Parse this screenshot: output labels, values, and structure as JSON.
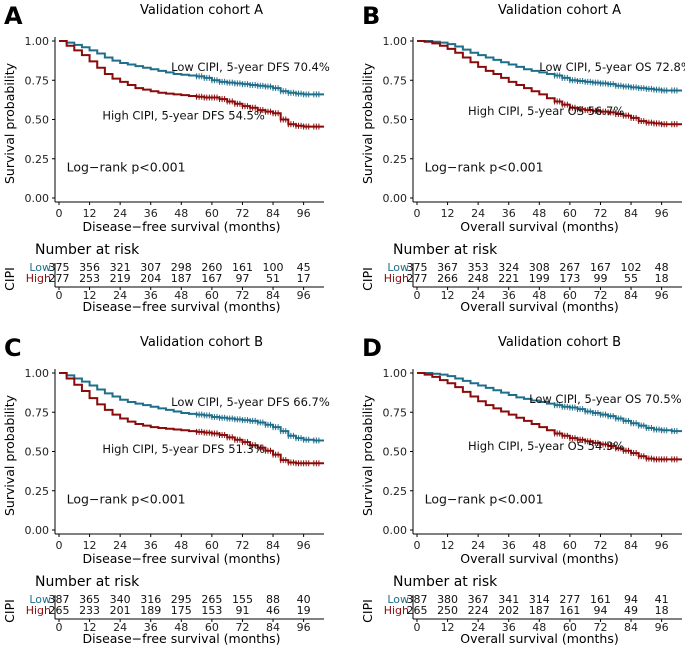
{
  "colors": {
    "low": "#1f6f8b",
    "high": "#8b0a0a",
    "axis": "#000000"
  },
  "chart_data": [
    {
      "type": "line",
      "panel_label": "A",
      "title": "Validation cohort A",
      "xlabel": "Disease−free survival (months)",
      "ylabel": "Survival probability",
      "xlim": [
        0,
        104
      ],
      "ylim": [
        0,
        1
      ],
      "xticks": [
        "0",
        "12",
        "24",
        "36",
        "48",
        "60",
        "72",
        "84",
        "96"
      ],
      "yticks": [
        "0.00",
        "0.25",
        "0.50",
        "0.75",
        "1.00"
      ],
      "series": [
        {
          "name": "Low",
          "label": "Low CIPI, 5-year DFS 70.4%",
          "x": [
            0,
            3,
            6,
            9,
            12,
            15,
            18,
            21,
            24,
            27,
            30,
            33,
            36,
            39,
            42,
            45,
            48,
            51,
            54,
            57,
            60,
            63,
            66,
            69,
            72,
            75,
            78,
            81,
            84,
            87,
            90,
            93,
            96,
            100,
            104
          ],
          "y": [
            1.0,
            0.99,
            0.975,
            0.96,
            0.94,
            0.92,
            0.895,
            0.875,
            0.86,
            0.85,
            0.84,
            0.83,
            0.82,
            0.81,
            0.8,
            0.79,
            0.785,
            0.78,
            0.775,
            0.765,
            0.75,
            0.74,
            0.735,
            0.73,
            0.725,
            0.72,
            0.715,
            0.71,
            0.7,
            0.68,
            0.67,
            0.665,
            0.66,
            0.66,
            0.66
          ]
        },
        {
          "name": "High",
          "label": "High CIPI, 5-year DFS 54.5%",
          "x": [
            0,
            3,
            6,
            9,
            12,
            15,
            18,
            21,
            24,
            27,
            30,
            33,
            36,
            39,
            42,
            45,
            48,
            51,
            54,
            57,
            60,
            63,
            66,
            69,
            72,
            75,
            78,
            81,
            84,
            87,
            90,
            93,
            96,
            100,
            104
          ],
          "y": [
            1.0,
            0.97,
            0.94,
            0.91,
            0.87,
            0.83,
            0.79,
            0.76,
            0.74,
            0.72,
            0.7,
            0.69,
            0.68,
            0.67,
            0.665,
            0.66,
            0.655,
            0.65,
            0.645,
            0.64,
            0.64,
            0.63,
            0.615,
            0.6,
            0.585,
            0.575,
            0.56,
            0.55,
            0.54,
            0.5,
            0.47,
            0.46,
            0.455,
            0.455,
            0.455
          ]
        }
      ],
      "logrank": "Log−rank p<0.001",
      "risk": {
        "title": "Number at risk",
        "axis_label": "CIPI",
        "rows": [
          {
            "name": "Low",
            "values": [
              "375",
              "356",
              "321",
              "307",
              "298",
              "260",
              "161",
              "100",
              "45"
            ]
          },
          {
            "name": "High",
            "values": [
              "277",
              "253",
              "219",
              "204",
              "187",
              "167",
              "97",
              "51",
              "17"
            ]
          }
        ]
      }
    },
    {
      "type": "line",
      "panel_label": "B",
      "title": "Validation cohort A",
      "xlabel": "Overall survival (months)",
      "ylabel": "Survival probability",
      "xlim": [
        0,
        104
      ],
      "ylim": [
        0,
        1
      ],
      "xticks": [
        "0",
        "12",
        "24",
        "36",
        "48",
        "60",
        "72",
        "84",
        "96"
      ],
      "yticks": [
        "0.00",
        "0.25",
        "0.50",
        "0.75",
        "1.00"
      ],
      "series": [
        {
          "name": "Low",
          "label": "Low CIPI, 5-year OS 72.8%",
          "x": [
            0,
            3,
            6,
            9,
            12,
            15,
            18,
            21,
            24,
            27,
            30,
            33,
            36,
            39,
            42,
            45,
            48,
            51,
            54,
            57,
            60,
            63,
            66,
            69,
            72,
            75,
            78,
            81,
            84,
            87,
            90,
            93,
            96,
            100,
            104
          ],
          "y": [
            1.0,
            1.0,
            0.995,
            0.99,
            0.98,
            0.965,
            0.945,
            0.925,
            0.91,
            0.895,
            0.88,
            0.865,
            0.85,
            0.835,
            0.82,
            0.81,
            0.8,
            0.79,
            0.78,
            0.765,
            0.75,
            0.745,
            0.74,
            0.735,
            0.73,
            0.725,
            0.715,
            0.71,
            0.705,
            0.7,
            0.695,
            0.69,
            0.685,
            0.685,
            0.685
          ]
        },
        {
          "name": "High",
          "label": "High CIPI, 5-year OS 56.7%",
          "x": [
            0,
            3,
            6,
            9,
            12,
            15,
            18,
            21,
            24,
            27,
            30,
            33,
            36,
            39,
            42,
            45,
            48,
            51,
            54,
            57,
            60,
            63,
            66,
            69,
            72,
            75,
            78,
            81,
            84,
            87,
            90,
            93,
            96,
            100,
            104
          ],
          "y": [
            1.0,
            0.995,
            0.985,
            0.97,
            0.95,
            0.925,
            0.895,
            0.865,
            0.835,
            0.81,
            0.79,
            0.765,
            0.74,
            0.72,
            0.7,
            0.68,
            0.66,
            0.635,
            0.615,
            0.595,
            0.575,
            0.565,
            0.56,
            0.555,
            0.55,
            0.545,
            0.535,
            0.525,
            0.51,
            0.49,
            0.48,
            0.475,
            0.47,
            0.47,
            0.47
          ]
        }
      ],
      "logrank": "Log−rank p<0.001",
      "risk": {
        "title": "Number at risk",
        "axis_label": "CIPI",
        "rows": [
          {
            "name": "Low",
            "values": [
              "375",
              "367",
              "353",
              "324",
              "308",
              "267",
              "167",
              "102",
              "48"
            ]
          },
          {
            "name": "High",
            "values": [
              "277",
              "266",
              "248",
              "221",
              "199",
              "173",
              "99",
              "55",
              "18"
            ]
          }
        ]
      }
    },
    {
      "type": "line",
      "panel_label": "C",
      "title": "Validation cohort B",
      "xlabel": "Disease−free survival (months)",
      "ylabel": "Survival probability",
      "xlim": [
        0,
        104
      ],
      "ylim": [
        0,
        1
      ],
      "xticks": [
        "0",
        "12",
        "24",
        "36",
        "48",
        "60",
        "72",
        "84",
        "96"
      ],
      "yticks": [
        "0.00",
        "0.25",
        "0.50",
        "0.75",
        "1.00"
      ],
      "series": [
        {
          "name": "Low",
          "label": "Low CIPI, 5-year DFS 66.7%",
          "x": [
            0,
            3,
            6,
            9,
            12,
            15,
            18,
            21,
            24,
            27,
            30,
            33,
            36,
            39,
            42,
            45,
            48,
            51,
            54,
            57,
            60,
            63,
            66,
            69,
            72,
            75,
            78,
            81,
            84,
            87,
            90,
            93,
            96,
            100,
            104
          ],
          "y": [
            1.0,
            0.985,
            0.965,
            0.945,
            0.92,
            0.895,
            0.87,
            0.85,
            0.83,
            0.815,
            0.805,
            0.795,
            0.785,
            0.775,
            0.765,
            0.755,
            0.745,
            0.74,
            0.735,
            0.73,
            0.72,
            0.715,
            0.71,
            0.705,
            0.7,
            0.695,
            0.685,
            0.67,
            0.655,
            0.63,
            0.6,
            0.585,
            0.575,
            0.57,
            0.57
          ]
        },
        {
          "name": "High",
          "label": "High CIPI, 5-year DFS 51.3%",
          "x": [
            0,
            3,
            6,
            9,
            12,
            15,
            18,
            21,
            24,
            27,
            30,
            33,
            36,
            39,
            42,
            45,
            48,
            51,
            54,
            57,
            60,
            63,
            66,
            69,
            72,
            75,
            78,
            81,
            84,
            87,
            90,
            93,
            96,
            100,
            104
          ],
          "y": [
            1.0,
            0.965,
            0.925,
            0.885,
            0.84,
            0.8,
            0.765,
            0.735,
            0.71,
            0.69,
            0.675,
            0.665,
            0.655,
            0.65,
            0.645,
            0.64,
            0.635,
            0.63,
            0.625,
            0.62,
            0.615,
            0.605,
            0.59,
            0.575,
            0.56,
            0.54,
            0.525,
            0.505,
            0.48,
            0.445,
            0.43,
            0.425,
            0.425,
            0.425,
            0.425
          ]
        }
      ],
      "logrank": "Log−rank p<0.001",
      "risk": {
        "title": "Number at risk",
        "axis_label": "CIPI",
        "rows": [
          {
            "name": "Low",
            "values": [
              "387",
              "365",
              "340",
              "316",
              "295",
              "265",
              "155",
              "88",
              "40"
            ]
          },
          {
            "name": "High",
            "values": [
              "265",
              "233",
              "201",
              "189",
              "175",
              "153",
              "91",
              "46",
              "19"
            ]
          }
        ]
      }
    },
    {
      "type": "line",
      "panel_label": "D",
      "title": "Validation cohort B",
      "xlabel": "Overall survival (months)",
      "ylabel": "Survival probability",
      "xlim": [
        0,
        104
      ],
      "ylim": [
        0,
        1
      ],
      "xticks": [
        "0",
        "12",
        "24",
        "36",
        "48",
        "60",
        "72",
        "84",
        "96"
      ],
      "yticks": [
        "0.00",
        "0.25",
        "0.50",
        "0.75",
        "1.00"
      ],
      "series": [
        {
          "name": "Low",
          "label": "Low CIPI, 5-year OS 70.5%",
          "x": [
            0,
            3,
            6,
            9,
            12,
            15,
            18,
            21,
            24,
            27,
            30,
            33,
            36,
            39,
            42,
            45,
            48,
            51,
            54,
            57,
            60,
            63,
            66,
            69,
            72,
            75,
            78,
            81,
            84,
            87,
            90,
            93,
            96,
            100,
            104
          ],
          "y": [
            1.0,
            1.0,
            0.995,
            0.99,
            0.98,
            0.965,
            0.95,
            0.935,
            0.92,
            0.905,
            0.89,
            0.875,
            0.86,
            0.845,
            0.835,
            0.825,
            0.815,
            0.805,
            0.795,
            0.785,
            0.78,
            0.77,
            0.755,
            0.745,
            0.735,
            0.725,
            0.71,
            0.695,
            0.68,
            0.665,
            0.65,
            0.64,
            0.635,
            0.63,
            0.63
          ]
        },
        {
          "name": "High",
          "label": "High CIPI, 5-year OS 54.3%",
          "x": [
            0,
            3,
            6,
            9,
            12,
            15,
            18,
            21,
            24,
            27,
            30,
            33,
            36,
            39,
            42,
            45,
            48,
            51,
            54,
            57,
            60,
            63,
            66,
            69,
            72,
            75,
            78,
            81,
            84,
            87,
            90,
            93,
            96,
            100,
            104
          ],
          "y": [
            1.0,
            0.99,
            0.975,
            0.955,
            0.935,
            0.91,
            0.88,
            0.85,
            0.82,
            0.795,
            0.775,
            0.755,
            0.735,
            0.715,
            0.695,
            0.675,
            0.655,
            0.635,
            0.615,
            0.6,
            0.585,
            0.575,
            0.565,
            0.555,
            0.545,
            0.535,
            0.52,
            0.505,
            0.49,
            0.47,
            0.455,
            0.45,
            0.45,
            0.45,
            0.45
          ]
        }
      ],
      "logrank": "Log−rank p<0.001",
      "risk": {
        "title": "Number at risk",
        "axis_label": "CIPI",
        "rows": [
          {
            "name": "Low",
            "values": [
              "387",
              "380",
              "367",
              "341",
              "314",
              "277",
              "161",
              "94",
              "41"
            ]
          },
          {
            "name": "High",
            "values": [
              "265",
              "250",
              "224",
              "202",
              "187",
              "161",
              "94",
              "49",
              "18"
            ]
          }
        ]
      }
    }
  ]
}
